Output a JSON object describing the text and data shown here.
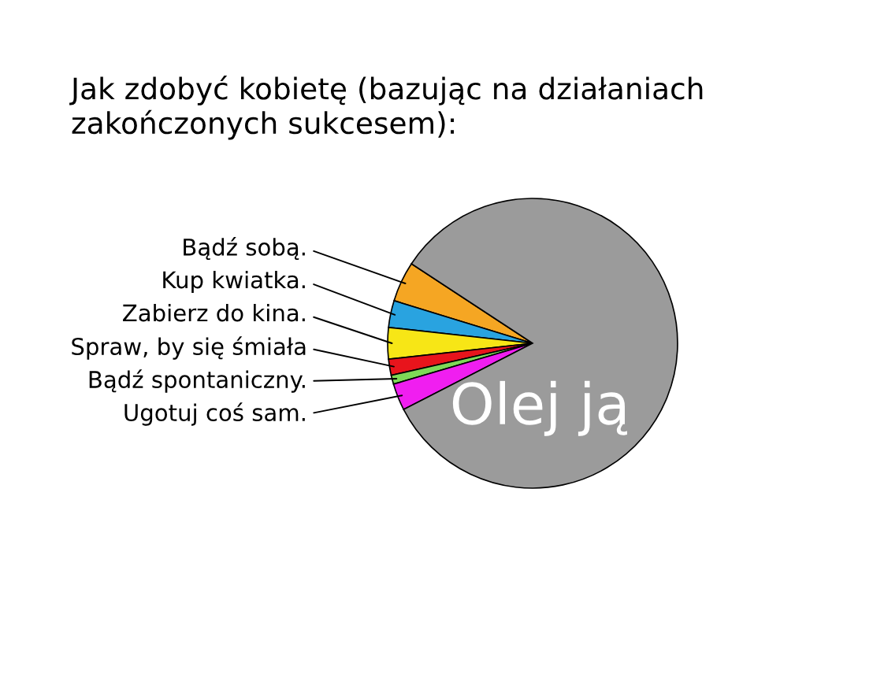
{
  "chart_data": {
    "type": "pie",
    "title": "Jak zdobyć kobietę (bazując na działaniach zakończonych sukcesem):",
    "categories": [
      "Bądź sobą.",
      "Kup kwiatka.",
      "Zabierz do kina.",
      "Spraw, by się śmiała",
      "Bądź spontaniczny.",
      "Ugotuj coś sam.",
      "Olej ją"
    ],
    "values": [
      4.5,
      3,
      3.5,
      1.8,
      1,
      3,
      83.2
    ],
    "colors": [
      "#f5a623",
      "#29a3e0",
      "#f7e616",
      "#e8141c",
      "#7ed957",
      "#f01ef0",
      "#9b9b9b"
    ]
  }
}
